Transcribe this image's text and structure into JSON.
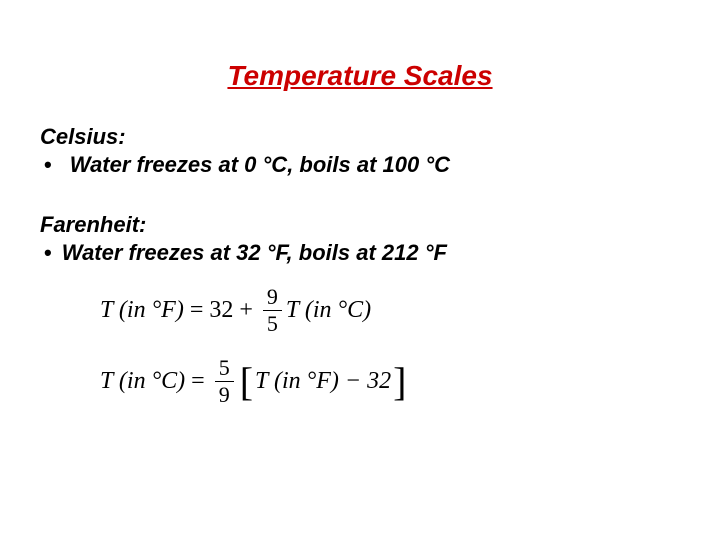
{
  "title": {
    "text": "Temperature Scales",
    "color": "#cc0000",
    "fontsize": 28
  },
  "celsius": {
    "heading": "Celsius:",
    "bullet": "Water freezes at 0 °C, boils at 100 °C"
  },
  "fahrenheit": {
    "heading": "Farenheit:",
    "bullet": "Water freezes at 32 °F, boils at 212 °F"
  },
  "formulas": {
    "f1": {
      "lhs": "T (in °F)",
      "eq": "=",
      "const": "32",
      "plus": "+",
      "frac_num": "9",
      "frac_den": "5",
      "rhs": "T (in °C)"
    },
    "f2": {
      "lhs": "T (in °C)",
      "eq": "=",
      "frac_num": "5",
      "frac_den": "9",
      "inner": "T (in °F) − 32"
    }
  },
  "style": {
    "text_color": "#000000",
    "background_color": "#ffffff",
    "body_fontsize": 22,
    "formula_fontsize": 24
  }
}
